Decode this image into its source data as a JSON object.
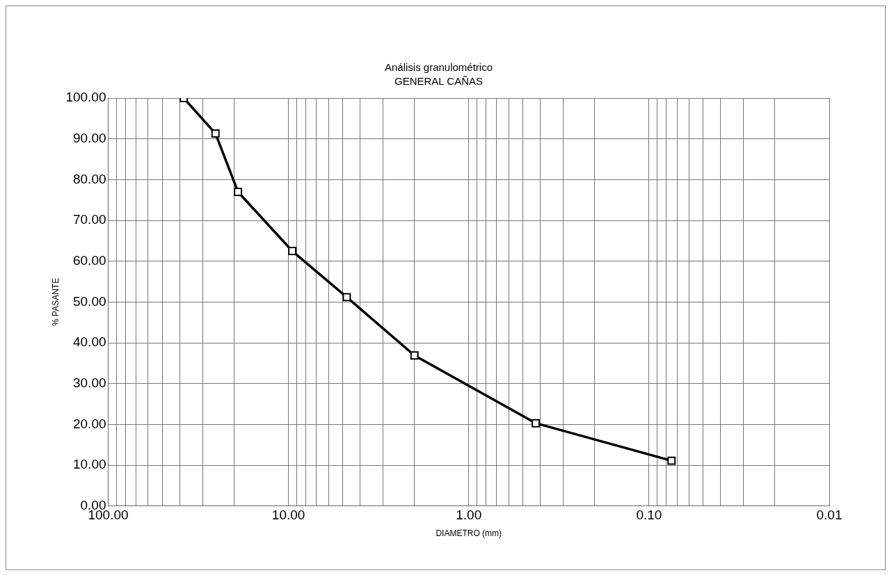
{
  "chart_data": {
    "type": "line",
    "title": "Análisis granulométrico",
    "subtitle": "GENERAL CAÑAS",
    "xlabel": "DIAMETRO (mm)",
    "ylabel": "% PASANTE",
    "log": "x",
    "grid": true,
    "marker": "square",
    "line_style": "solid",
    "legend": false,
    "xlim": [
      100,
      0.01
    ],
    "xticks": [
      {
        "value": 100,
        "label": "100.00"
      },
      {
        "value": 90,
        "label": null
      },
      {
        "value": 80,
        "label": null
      },
      {
        "value": 70,
        "label": null
      },
      {
        "value": 60,
        "label": null
      },
      {
        "value": 50,
        "label": null
      },
      {
        "value": 40,
        "label": null
      },
      {
        "value": 30,
        "label": null
      },
      {
        "value": 20,
        "label": null
      },
      {
        "value": 10,
        "label": "10.00"
      },
      {
        "value": 9,
        "label": null
      },
      {
        "value": 8,
        "label": null
      },
      {
        "value": 7,
        "label": null
      },
      {
        "value": 6,
        "label": null
      },
      {
        "value": 5,
        "label": null
      },
      {
        "value": 4,
        "label": null
      },
      {
        "value": 3,
        "label": null
      },
      {
        "value": 2,
        "label": null
      },
      {
        "value": 1,
        "label": "1.00"
      },
      {
        "value": 0.9,
        "label": null
      },
      {
        "value": 0.8,
        "label": null
      },
      {
        "value": 0.7,
        "label": null
      },
      {
        "value": 0.6,
        "label": null
      },
      {
        "value": 0.5,
        "label": null
      },
      {
        "value": 0.4,
        "label": null
      },
      {
        "value": 0.3,
        "label": null
      },
      {
        "value": 0.2,
        "label": null
      },
      {
        "value": 0.1,
        "label": "0.10"
      },
      {
        "value": 0.09,
        "label": null
      },
      {
        "value": 0.08,
        "label": null
      },
      {
        "value": 0.07,
        "label": null
      },
      {
        "value": 0.06,
        "label": null
      },
      {
        "value": 0.05,
        "label": null
      },
      {
        "value": 0.04,
        "label": null
      },
      {
        "value": 0.03,
        "label": null
      },
      {
        "value": 0.02,
        "label": null
      },
      {
        "value": 0.01,
        "label": "0.01"
      }
    ],
    "ylim": [
      0,
      100
    ],
    "yticks": [
      {
        "value": 0,
        "label": "0.00"
      },
      {
        "value": 10,
        "label": "10.00"
      },
      {
        "value": 20,
        "label": "20.00"
      },
      {
        "value": 30,
        "label": "30.00"
      },
      {
        "value": 40,
        "label": "40.00"
      },
      {
        "value": 50,
        "label": "50.00"
      },
      {
        "value": 60,
        "label": "60.00"
      },
      {
        "value": 70,
        "label": "70.00"
      },
      {
        "value": 80,
        "label": "80.00"
      },
      {
        "value": 90,
        "label": "90.00"
      },
      {
        "value": 100,
        "label": "100.00"
      }
    ],
    "series": [
      {
        "color": "#000000",
        "x": [
          38.1,
          25.4,
          19.05,
          9.53,
          4.75,
          2.0,
          0.425,
          0.075
        ],
        "values": [
          100,
          91.3,
          77.0,
          62.5,
          51.2,
          36.9,
          20.3,
          11.1
        ]
      }
    ]
  }
}
